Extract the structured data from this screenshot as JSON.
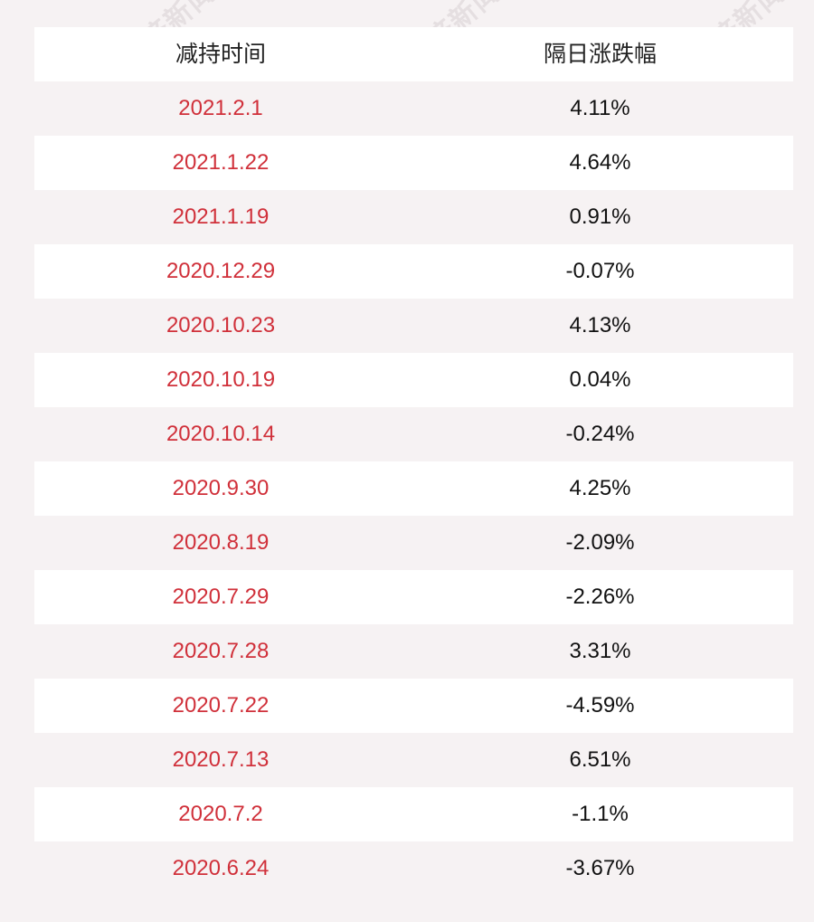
{
  "table": {
    "headers": [
      "减持时间",
      "隔日涨跌幅"
    ],
    "rows": [
      {
        "date": "2021.2.1",
        "change": "4.11%"
      },
      {
        "date": "2021.1.22",
        "change": "4.64%"
      },
      {
        "date": "2021.1.19",
        "change": "0.91%"
      },
      {
        "date": "2020.12.29",
        "change": "-0.07%"
      },
      {
        "date": "2020.10.23",
        "change": "4.13%"
      },
      {
        "date": "2020.10.19",
        "change": "0.04%"
      },
      {
        "date": "2020.10.14",
        "change": "-0.24%"
      },
      {
        "date": "2020.9.30",
        "change": "4.25%"
      },
      {
        "date": "2020.8.19",
        "change": "-2.09%"
      },
      {
        "date": "2020.7.29",
        "change": "-2.26%"
      },
      {
        "date": "2020.7.28",
        "change": "3.31%"
      },
      {
        "date": "2020.7.22",
        "change": "-4.59%"
      },
      {
        "date": "2020.7.13",
        "change": "6.51%"
      },
      {
        "date": "2020.7.2",
        "change": "-1.1%"
      },
      {
        "date": "2020.6.24",
        "change": "-3.67%"
      }
    ]
  },
  "watermark": {
    "text": "每日经济新闻"
  },
  "colors": {
    "date_text": "#d0303a",
    "value_text": "#111111",
    "stripe": "#f6f2f3"
  }
}
